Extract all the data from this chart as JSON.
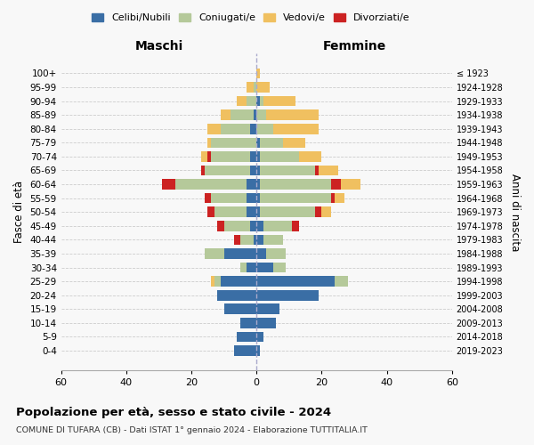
{
  "age_groups": [
    "0-4",
    "5-9",
    "10-14",
    "15-19",
    "20-24",
    "25-29",
    "30-34",
    "35-39",
    "40-44",
    "45-49",
    "50-54",
    "55-59",
    "60-64",
    "65-69",
    "70-74",
    "75-79",
    "80-84",
    "85-89",
    "90-94",
    "95-99",
    "100+"
  ],
  "birth_years": [
    "2019-2023",
    "2014-2018",
    "2009-2013",
    "2004-2008",
    "1999-2003",
    "1994-1998",
    "1989-1993",
    "1984-1988",
    "1979-1983",
    "1974-1978",
    "1969-1973",
    "1964-1968",
    "1959-1963",
    "1954-1958",
    "1949-1953",
    "1944-1948",
    "1939-1943",
    "1934-1938",
    "1929-1933",
    "1924-1928",
    "≤ 1923"
  ],
  "maschi": {
    "celibi": [
      7,
      6,
      5,
      10,
      12,
      11,
      3,
      10,
      1,
      2,
      3,
      3,
      3,
      2,
      2,
      0,
      2,
      1,
      0,
      0,
      0
    ],
    "coniugati": [
      0,
      0,
      0,
      0,
      0,
      2,
      2,
      6,
      4,
      8,
      10,
      11,
      22,
      14,
      12,
      14,
      9,
      7,
      3,
      1,
      0
    ],
    "vedovi": [
      0,
      0,
      0,
      0,
      0,
      1,
      0,
      0,
      0,
      0,
      0,
      0,
      0,
      0,
      2,
      1,
      4,
      3,
      3,
      2,
      0
    ],
    "divorziati": [
      0,
      0,
      0,
      0,
      0,
      0,
      0,
      0,
      2,
      2,
      2,
      2,
      4,
      1,
      1,
      0,
      0,
      0,
      0,
      0,
      0
    ]
  },
  "femmine": {
    "nubili": [
      1,
      2,
      6,
      7,
      19,
      24,
      5,
      3,
      2,
      2,
      1,
      1,
      1,
      1,
      1,
      1,
      0,
      0,
      1,
      0,
      0
    ],
    "coniugate": [
      0,
      0,
      0,
      0,
      0,
      4,
      4,
      6,
      6,
      9,
      17,
      22,
      22,
      17,
      12,
      7,
      5,
      3,
      1,
      0,
      0
    ],
    "vedove": [
      0,
      0,
      0,
      0,
      0,
      0,
      0,
      0,
      0,
      0,
      3,
      3,
      6,
      6,
      7,
      7,
      14,
      16,
      10,
      4,
      1
    ],
    "divorziate": [
      0,
      0,
      0,
      0,
      0,
      0,
      0,
      0,
      0,
      2,
      2,
      1,
      3,
      1,
      0,
      0,
      0,
      0,
      0,
      0,
      0
    ]
  },
  "colors": {
    "celibi": "#3a6ea5",
    "coniugati": "#b5c99a",
    "vedovi": "#f0c060",
    "divorziati": "#cc2222"
  },
  "title": "Popolazione per età, sesso e stato civile - 2024",
  "subtitle": "COMUNE DI TUFARA (CB) - Dati ISTAT 1° gennaio 2024 - Elaborazione TUTTITALIA.IT",
  "xlabel_left": "Maschi",
  "xlabel_right": "Femmine",
  "ylabel_left": "Fasce di età",
  "ylabel_right": "Anni di nascita",
  "xlim": 60,
  "background_color": "#f8f8f8",
  "legend_labels": [
    "Celibi/Nubili",
    "Coniugati/e",
    "Vedovi/e",
    "Divorziati/e"
  ]
}
